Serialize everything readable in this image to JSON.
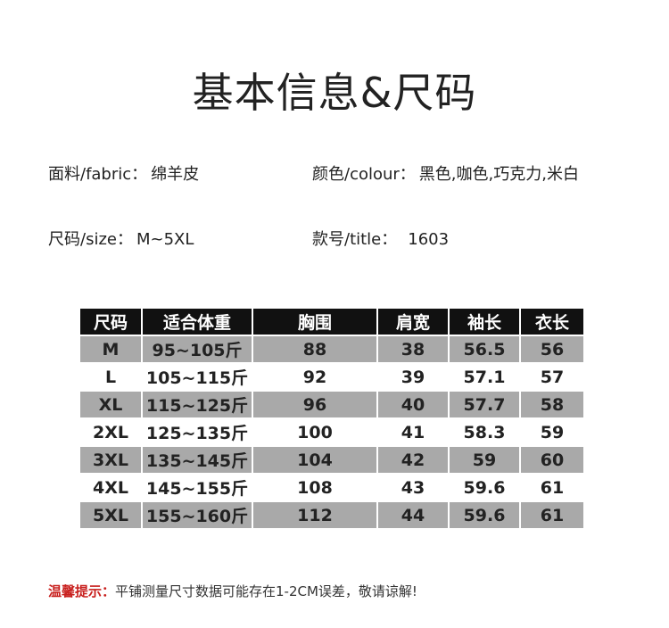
{
  "title": "基本信息&尺码",
  "info": {
    "fabric_label": "面料/fabric：",
    "fabric_value": "绵羊皮",
    "colour_label": "颜色/colour：",
    "colour_value": "黑色,咖色,巧克力,米白",
    "size_label": "尺码/size：",
    "size_value": "M~5XL",
    "style_label": "款号/title：",
    "style_value": "1603"
  },
  "table": {
    "headers": [
      "尺码",
      "适合体重",
      "胸围",
      "肩宽",
      "袖长",
      "衣长"
    ],
    "rows": [
      [
        "M",
        "95~105斤",
        "88",
        "38",
        "56.5",
        "56"
      ],
      [
        "L",
        "105~115斤",
        "92",
        "39",
        "57.1",
        "57"
      ],
      [
        "XL",
        "115~125斤",
        "96",
        "40",
        "57.7",
        "58"
      ],
      [
        "2XL",
        "125~135斤",
        "100",
        "41",
        "58.3",
        "59"
      ],
      [
        "3XL",
        "135~145斤",
        "104",
        "42",
        "59",
        "60"
      ],
      [
        "4XL",
        "145~155斤",
        "108",
        "43",
        "59.6",
        "61"
      ],
      [
        "5XL",
        "155~160斤",
        "112",
        "44",
        "59.6",
        "61"
      ]
    ]
  },
  "note": {
    "label": "温馨提示：",
    "text": "平铺测量尺寸数据可能存在1-2CM误差，敬请谅解!"
  },
  "colors": {
    "header_bg": "#111111",
    "stripe": "#a9a9a9",
    "note_label": "#c8201e"
  }
}
